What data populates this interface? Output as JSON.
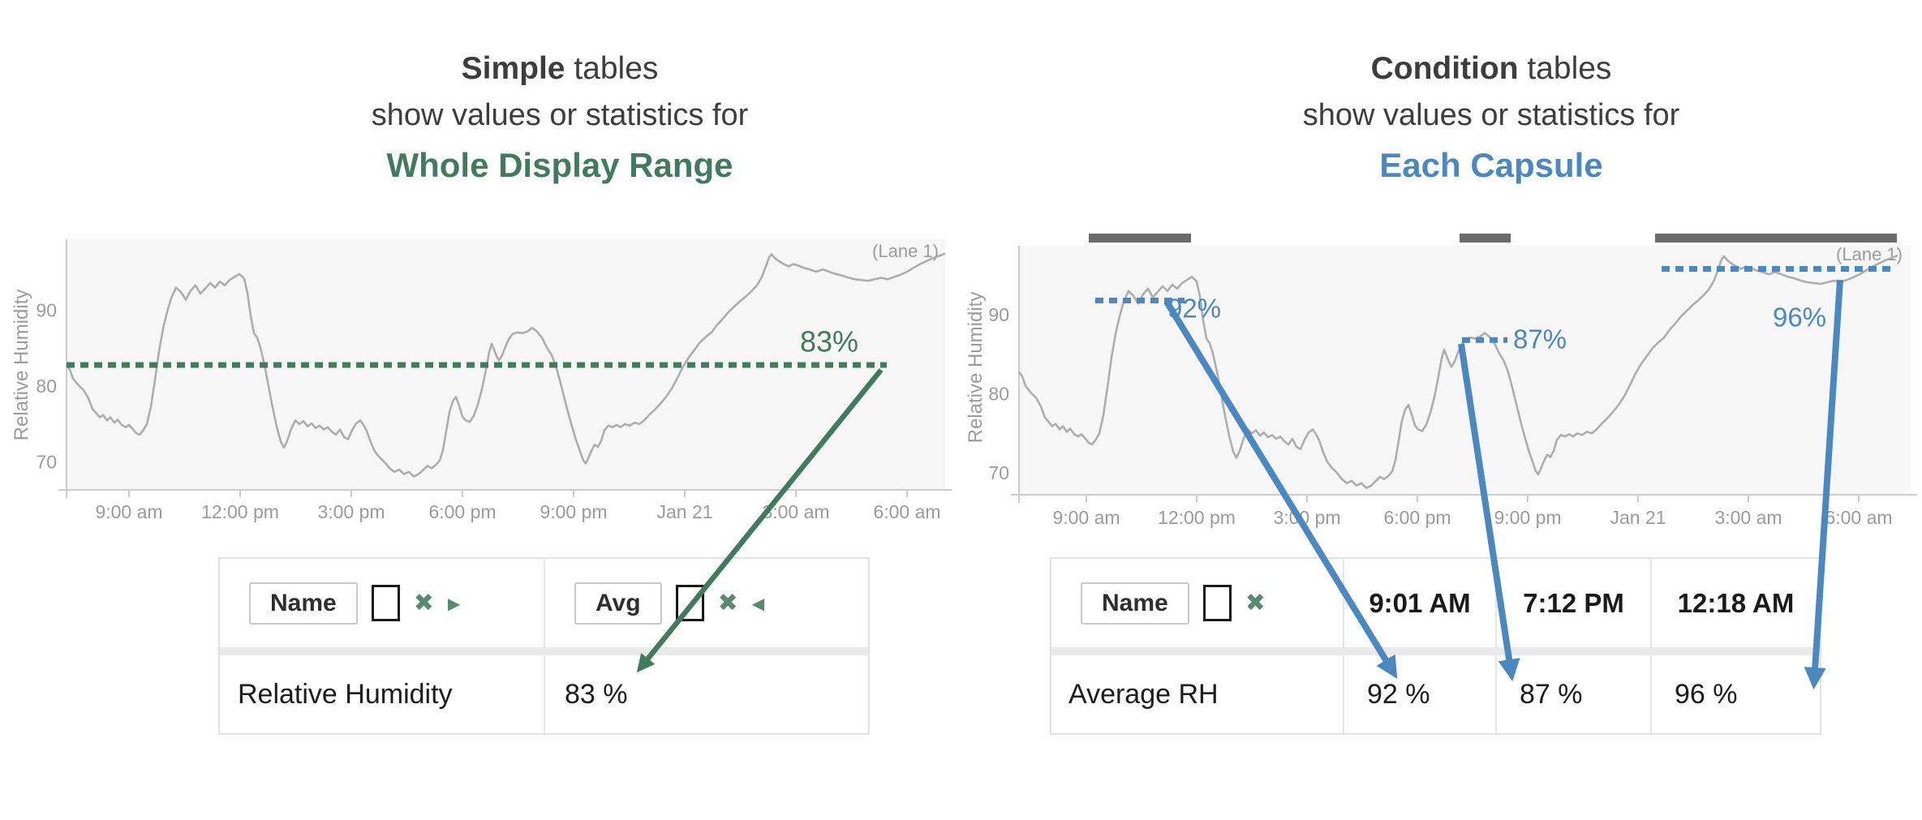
{
  "colors": {
    "green": "#427a5f",
    "blue": "#4c88c0",
    "axis_text": "#9b9b9b",
    "curve": "#adadad",
    "capsule_bar": "#6b6b6b",
    "headline_text": "#3d3d3d",
    "table_text": "#1c1c1c"
  },
  "icons": {
    "close": "✖",
    "tri_right": "▶",
    "tri_left": "◀"
  },
  "left_panel": {
    "title": {
      "bold": "Simple",
      "rest": " tables",
      "line2": "show values or statistics for",
      "line3": "Whole Display Range"
    },
    "annotation": "83%",
    "table": {
      "name_button": "Name",
      "avg_button": "Avg",
      "row": {
        "name": "Relative Humidity",
        "avg": "83 %"
      }
    }
  },
  "right_panel": {
    "title": {
      "bold": "Condition",
      "rest": " tables",
      "line2": "show values or statistics for",
      "line3": "Each Capsule"
    },
    "table": {
      "name_button": "Name",
      "columns": [
        "9:01 AM",
        "7:12 PM",
        "12:18 AM"
      ],
      "row": {
        "name": "Average RH",
        "values": [
          "92 %",
          "87 %",
          "96 %"
        ]
      }
    }
  },
  "chart_data": [
    {
      "type": "line",
      "title": "",
      "ylabel": "Relative Humidity",
      "yticks": [
        70,
        80,
        90
      ],
      "ylim": [
        66.5,
        99.5
      ],
      "xtick_labels": [
        "9:00 am",
        "12:00 pm",
        "3:00 pm",
        "6:00 pm",
        "9:00 pm",
        "Jan 21",
        "3:00 am",
        "6:00 am"
      ],
      "lane_label": "(Lane 1)",
      "grid": false,
      "legend": "none",
      "reference_line": {
        "stat": "Avg",
        "value": 83,
        "label": "83%",
        "style": "dotted"
      },
      "series": [
        {
          "name": "Relative Humidity",
          "points": [
            [
              82,
              83
            ],
            [
              86,
              82.4
            ],
            [
              90,
              81.2
            ],
            [
              97,
              80.3
            ],
            [
              103,
              79.7
            ],
            [
              109,
              78.6
            ],
            [
              114,
              77.2
            ],
            [
              119,
              76.6
            ],
            [
              123,
              76.1
            ],
            [
              127,
              76.4
            ],
            [
              132,
              75.7
            ],
            [
              136,
              76.1
            ],
            [
              141,
              75.4
            ],
            [
              145,
              75.8
            ],
            [
              150,
              75.1
            ],
            [
              155,
              74.8
            ],
            [
              159,
              75.1
            ],
            [
              164,
              74.5
            ],
            [
              168,
              74
            ],
            [
              172,
              73.8
            ],
            [
              176,
              74.3
            ],
            [
              181,
              75.2
            ],
            [
              186,
              77.5
            ],
            [
              191,
              81
            ],
            [
              196,
              84.8
            ],
            [
              201,
              87.8
            ],
            [
              206,
              90
            ],
            [
              211,
              91.8
            ],
            [
              217,
              93.2
            ],
            [
              223,
              92.6
            ],
            [
              229,
              91.6
            ],
            [
              235,
              92.8
            ],
            [
              241,
              93.5
            ],
            [
              247,
              92.4
            ],
            [
              253,
              93.1
            ],
            [
              259,
              93.8
            ],
            [
              265,
              93.2
            ],
            [
              271,
              94
            ],
            [
              277,
              93.5
            ],
            [
              283,
              94.2
            ],
            [
              289,
              94.6
            ],
            [
              295,
              95
            ],
            [
              301,
              94.4
            ],
            [
              305,
              92.5
            ],
            [
              309,
              89.5
            ],
            [
              313,
              87.2
            ],
            [
              317,
              86.6
            ],
            [
              321,
              85.3
            ],
            [
              326,
              83
            ],
            [
              331,
              80.2
            ],
            [
              336,
              77.4
            ],
            [
              341,
              74.9
            ],
            [
              346,
              72.9
            ],
            [
              350,
              72.1
            ],
            [
              354,
              73
            ],
            [
              359,
              74.6
            ],
            [
              364,
              75.7
            ],
            [
              369,
              75.2
            ],
            [
              374,
              75.6
            ],
            [
              379,
              74.9
            ],
            [
              384,
              75.3
            ],
            [
              389,
              74.7
            ],
            [
              394,
              75
            ],
            [
              399,
              74.5
            ],
            [
              404,
              74.8
            ],
            [
              409,
              74.2
            ],
            [
              414,
              73.8
            ],
            [
              419,
              74.5
            ],
            [
              424,
              73.5
            ],
            [
              429,
              73.2
            ],
            [
              434,
              74.4
            ],
            [
              439,
              75.3
            ],
            [
              444,
              75.7
            ],
            [
              448,
              75.1
            ],
            [
              452,
              74.3
            ],
            [
              457,
              72.8
            ],
            [
              462,
              71.6
            ],
            [
              468,
              70.8
            ],
            [
              474,
              70.2
            ],
            [
              480,
              69.4
            ],
            [
              486,
              68.9
            ],
            [
              492,
              69.2
            ],
            [
              498,
              68.6
            ],
            [
              504,
              68.9
            ],
            [
              510,
              68.3
            ],
            [
              516,
              68.6
            ],
            [
              522,
              69.2
            ],
            [
              527,
              69.7
            ],
            [
              532,
              69.4
            ],
            [
              537,
              69.8
            ],
            [
              542,
              70.4
            ],
            [
              546,
              71.8
            ],
            [
              550,
              74.3
            ],
            [
              554,
              76.8
            ],
            [
              558,
              78.2
            ],
            [
              562,
              78.8
            ],
            [
              566,
              77.6
            ],
            [
              570,
              76.2
            ],
            [
              574,
              75.7
            ],
            [
              579,
              75.5
            ],
            [
              584,
              76.3
            ],
            [
              589,
              77.8
            ],
            [
              594,
              79.8
            ],
            [
              599,
              82.4
            ],
            [
              603,
              84.7
            ],
            [
              606,
              85.8
            ],
            [
              609,
              85
            ],
            [
              612,
              84.2
            ],
            [
              615,
              83.6
            ],
            [
              619,
              84.3
            ],
            [
              623,
              85.4
            ],
            [
              627,
              86.4
            ],
            [
              632,
              87.1
            ],
            [
              638,
              87.3
            ],
            [
              644,
              87.2
            ],
            [
              650,
              87.4
            ],
            [
              656,
              87.9
            ],
            [
              662,
              87.4
            ],
            [
              668,
              86.6
            ],
            [
              674,
              85.3
            ],
            [
              680,
              84.3
            ],
            [
              685,
              82.9
            ],
            [
              690,
              81
            ],
            [
              695,
              78.9
            ],
            [
              700,
              76.8
            ],
            [
              705,
              74.9
            ],
            [
              710,
              73.1
            ],
            [
              715,
              71.6
            ],
            [
              719,
              70.4
            ],
            [
              722,
              70
            ],
            [
              725,
              70.7
            ],
            [
              729,
              71.7
            ],
            [
              733,
              72.5
            ],
            [
              737,
              72.2
            ],
            [
              741,
              73
            ],
            [
              745,
              74.4
            ],
            [
              750,
              75
            ],
            [
              755,
              74.8
            ],
            [
              760,
              75.1
            ],
            [
              765,
              74.8
            ],
            [
              770,
              75.2
            ],
            [
              776,
              75
            ],
            [
              782,
              75.4
            ],
            [
              788,
              75.2
            ],
            [
              794,
              75.7
            ],
            [
              800,
              76.4
            ],
            [
              807,
              77.1
            ],
            [
              814,
              77.9
            ],
            [
              821,
              78.8
            ],
            [
              828,
              79.9
            ],
            [
              835,
              81.3
            ],
            [
              842,
              82.8
            ],
            [
              849,
              84
            ],
            [
              856,
              85
            ],
            [
              863,
              86
            ],
            [
              870,
              86.7
            ],
            [
              877,
              87.3
            ],
            [
              884,
              88.3
            ],
            [
              891,
              89.1
            ],
            [
              898,
              90
            ],
            [
              905,
              90.7
            ],
            [
              912,
              91.4
            ],
            [
              919,
              92
            ],
            [
              926,
              92.7
            ],
            [
              933,
              93.5
            ],
            [
              939,
              94.6
            ],
            [
              944,
              96
            ],
            [
              948,
              97.2
            ],
            [
              951,
              97.6
            ],
            [
              955,
              97.1
            ],
            [
              960,
              96.7
            ],
            [
              966,
              96.3
            ],
            [
              972,
              96
            ],
            [
              978,
              96.3
            ],
            [
              984,
              96.1
            ],
            [
              991,
              95.8
            ],
            [
              998,
              95.6
            ],
            [
              1006,
              95.3
            ],
            [
              1014,
              95.6
            ],
            [
              1022,
              95.3
            ],
            [
              1030,
              95
            ],
            [
              1038,
              94.8
            ],
            [
              1046,
              94.5
            ],
            [
              1054,
              94.3
            ],
            [
              1062,
              94.2
            ],
            [
              1070,
              94.1
            ],
            [
              1078,
              94.3
            ],
            [
              1086,
              94.5
            ],
            [
              1094,
              94.3
            ],
            [
              1102,
              94.6
            ],
            [
              1110,
              94.9
            ],
            [
              1118,
              95.3
            ],
            [
              1126,
              95.8
            ],
            [
              1134,
              96.3
            ],
            [
              1142,
              96.7
            ],
            [
              1150,
              97.1
            ],
            [
              1158,
              97.4
            ],
            [
              1165,
              97.7
            ]
          ]
        }
      ]
    },
    {
      "type": "line",
      "title": "",
      "ylabel": "Relative Humidity",
      "yticks": [
        70,
        80,
        90
      ],
      "ylim": [
        66.5,
        99.5
      ],
      "xtick_labels": [
        "9:00 am",
        "12:00 pm",
        "3:00 pm",
        "6:00 pm",
        "9:00 pm",
        "Jan 21",
        "3:00 am",
        "6:00 am"
      ],
      "lane_label": "(Lane 1)",
      "grid": false,
      "legend": "none",
      "series_ref": 0,
      "capsules": [
        {
          "start": "9:01 AM",
          "avg_value": 92,
          "label": "92%"
        },
        {
          "start": "7:12 PM",
          "avg_value": 87,
          "label": "87%"
        },
        {
          "start": "12:18 AM",
          "avg_value": 96,
          "label": "96%"
        }
      ]
    }
  ]
}
